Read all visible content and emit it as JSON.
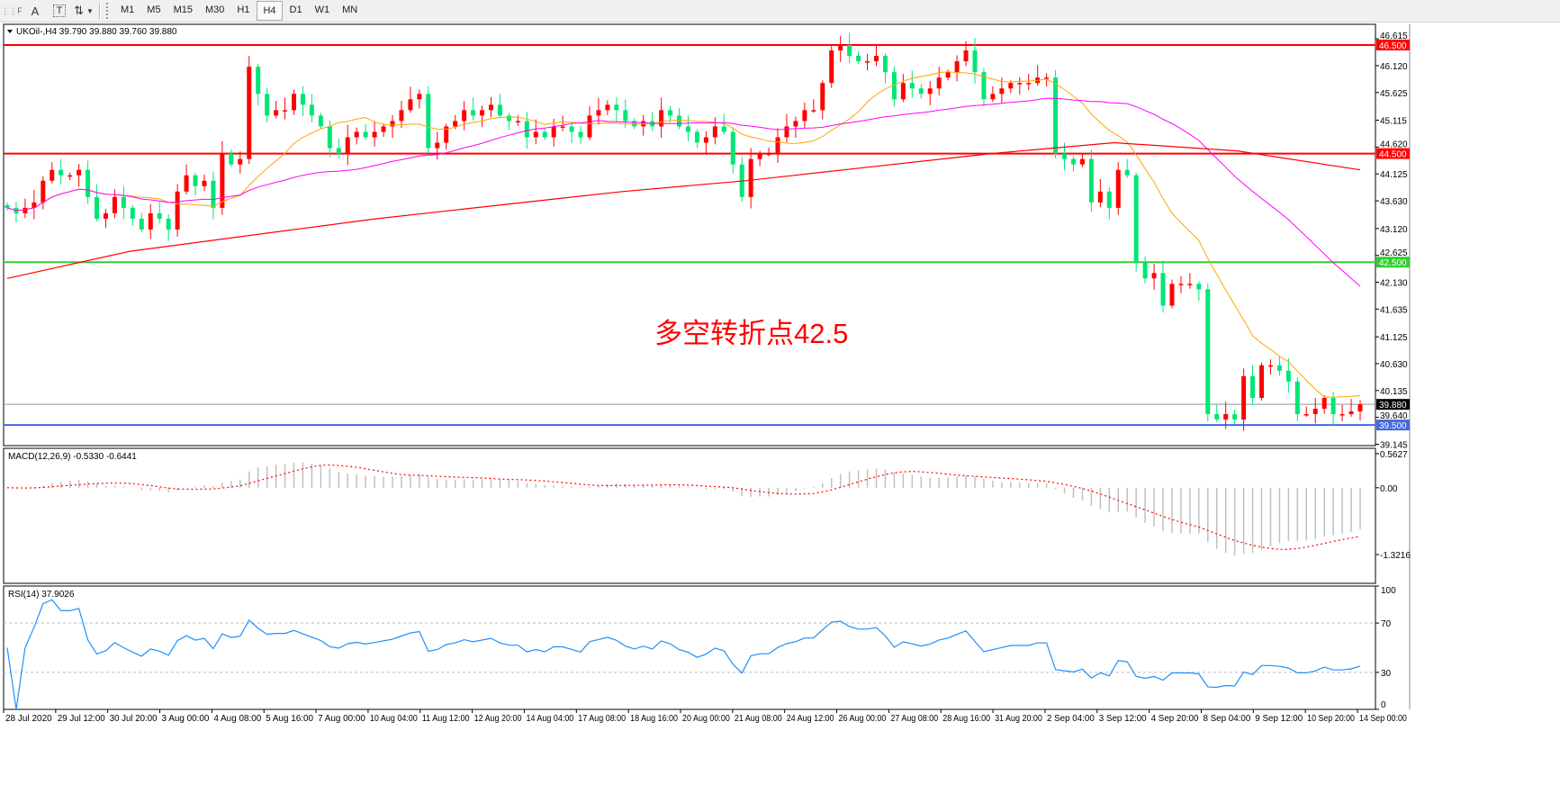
{
  "toolbar": {
    "icons": [
      "crosshair-grid-icon",
      "text-A-icon",
      "text-label-icon",
      "arrows-icon"
    ],
    "periods": [
      "M1",
      "M5",
      "M15",
      "M30",
      "H1",
      "H4",
      "D1",
      "W1",
      "MN"
    ],
    "active_period": "H4"
  },
  "header": {
    "symbol_line": "UKOil-,H4  39.790 39.880 39.760 39.880"
  },
  "annotation": "多空转折点42.5",
  "colors": {
    "bull": "#ff0000",
    "bear": "#00e676",
    "ma_fast": "#ffa500",
    "ma_mid": "#ff00ff",
    "ma_slow": "#ff0000",
    "rsi": "#1e90ff",
    "macd_hist": "#c0c0c0",
    "macd_signal": "#ff0000",
    "level_red": "#ff0000",
    "level_green": "#32cd32",
    "level_blue": "#4169e1"
  },
  "price_axis": {
    "ticks": [
      "46.615",
      "46.120",
      "45.625",
      "45.115",
      "44.620",
      "44.125",
      "43.630",
      "43.120",
      "42.625",
      "42.130",
      "41.635",
      "41.125",
      "40.630",
      "40.135",
      "39.640",
      "39.145"
    ],
    "range": [
      39.145,
      46.615
    ]
  },
  "levels": [
    {
      "value": 46.5,
      "label": "46.500",
      "color": "#ff0000"
    },
    {
      "value": 44.5,
      "label": "44.500",
      "color": "#ff0000"
    },
    {
      "value": 42.5,
      "label": "42.500",
      "color": "#32cd32"
    },
    {
      "value": 39.5,
      "label": "39.500",
      "color": "#4169e1"
    }
  ],
  "current_price": {
    "value": 39.88,
    "label": "39.880"
  },
  "chart_data": {
    "type": "candlestick",
    "closes": [
      43.5,
      43.4,
      43.5,
      43.6,
      44.0,
      44.2,
      44.1,
      44.1,
      44.2,
      43.7,
      43.3,
      43.4,
      43.7,
      43.5,
      43.3,
      43.1,
      43.4,
      43.3,
      43.1,
      43.8,
      44.1,
      43.9,
      44.0,
      43.5,
      44.5,
      44.3,
      44.4,
      46.1,
      45.6,
      45.2,
      45.3,
      45.3,
      45.6,
      45.4,
      45.2,
      45.0,
      44.6,
      44.5,
      44.8,
      44.9,
      44.8,
      44.9,
      45.0,
      45.1,
      45.3,
      45.5,
      45.6,
      44.6,
      44.7,
      45.0,
      45.1,
      45.3,
      45.2,
      45.3,
      45.4,
      45.2,
      45.1,
      45.1,
      44.8,
      44.9,
      44.8,
      45.0,
      45.0,
      44.9,
      44.8,
      45.2,
      45.3,
      45.4,
      45.3,
      45.1,
      45.0,
      45.1,
      45.0,
      45.3,
      45.2,
      45.0,
      44.9,
      44.7,
      44.8,
      45.0,
      44.9,
      44.3,
      43.7,
      44.4,
      44.5,
      44.5,
      44.8,
      45.0,
      45.1,
      45.3,
      45.3,
      45.8,
      46.4,
      46.5,
      46.3,
      46.2,
      46.2,
      46.3,
      46.0,
      45.5,
      45.8,
      45.7,
      45.6,
      45.7,
      45.9,
      46.0,
      46.2,
      46.4,
      46.0,
      45.5,
      45.6,
      45.7,
      45.8,
      45.8,
      45.8,
      45.9,
      45.9,
      44.5,
      44.4,
      44.3,
      44.4,
      43.6,
      43.8,
      43.5,
      44.2,
      44.1,
      42.5,
      42.2,
      42.3,
      41.7,
      42.1,
      42.1,
      42.1,
      42.0,
      39.7,
      39.6,
      39.7,
      39.6,
      40.4,
      40.0,
      40.6,
      40.6,
      40.5,
      40.3,
      39.7,
      39.7,
      39.8,
      40.0,
      39.7,
      39.7,
      39.75,
      39.88
    ],
    "ma_slow": [
      42.2,
      42.7,
      43.0,
      43.3,
      43.55,
      43.8,
      44.0,
      44.25,
      44.5,
      44.7,
      44.55,
      44.2
    ]
  },
  "macd": {
    "label": "MACD(12,26,9) -0.5330 -0.6441",
    "ticks": [
      "0.5627",
      "0.00",
      "-1.3216"
    ],
    "range": [
      -1.3216,
      0.5627
    ]
  },
  "rsi": {
    "label": "RSI(14) 37.9026",
    "ticks": [
      "100",
      "70",
      "30",
      "0"
    ],
    "levels": [
      70,
      30
    ]
  },
  "time_axis": [
    "28 Jul 2020",
    "29 Jul 12:00",
    "30 Jul 20:00",
    "3 Aug 00:00",
    "4 Aug 08:00",
    "5 Aug 16:00",
    "7 Aug 00:00",
    "10 Aug 04:00",
    "11 Aug 12:00",
    "12 Aug 20:00",
    "14 Aug 04:00",
    "17 Aug 08:00",
    "18 Aug 16:00",
    "20 Aug 00:00",
    "21 Aug 08:00",
    "24 Aug 12:00",
    "26 Aug 00:00",
    "27 Aug 08:00",
    "28 Aug 16:00",
    "31 Aug 20:00",
    "2 Sep 04:00",
    "3 Sep 12:00",
    "4 Sep 20:00",
    "8 Sep 04:00",
    "9 Sep 12:00",
    "10 Sep 20:00",
    "14 Sep 00:00"
  ]
}
